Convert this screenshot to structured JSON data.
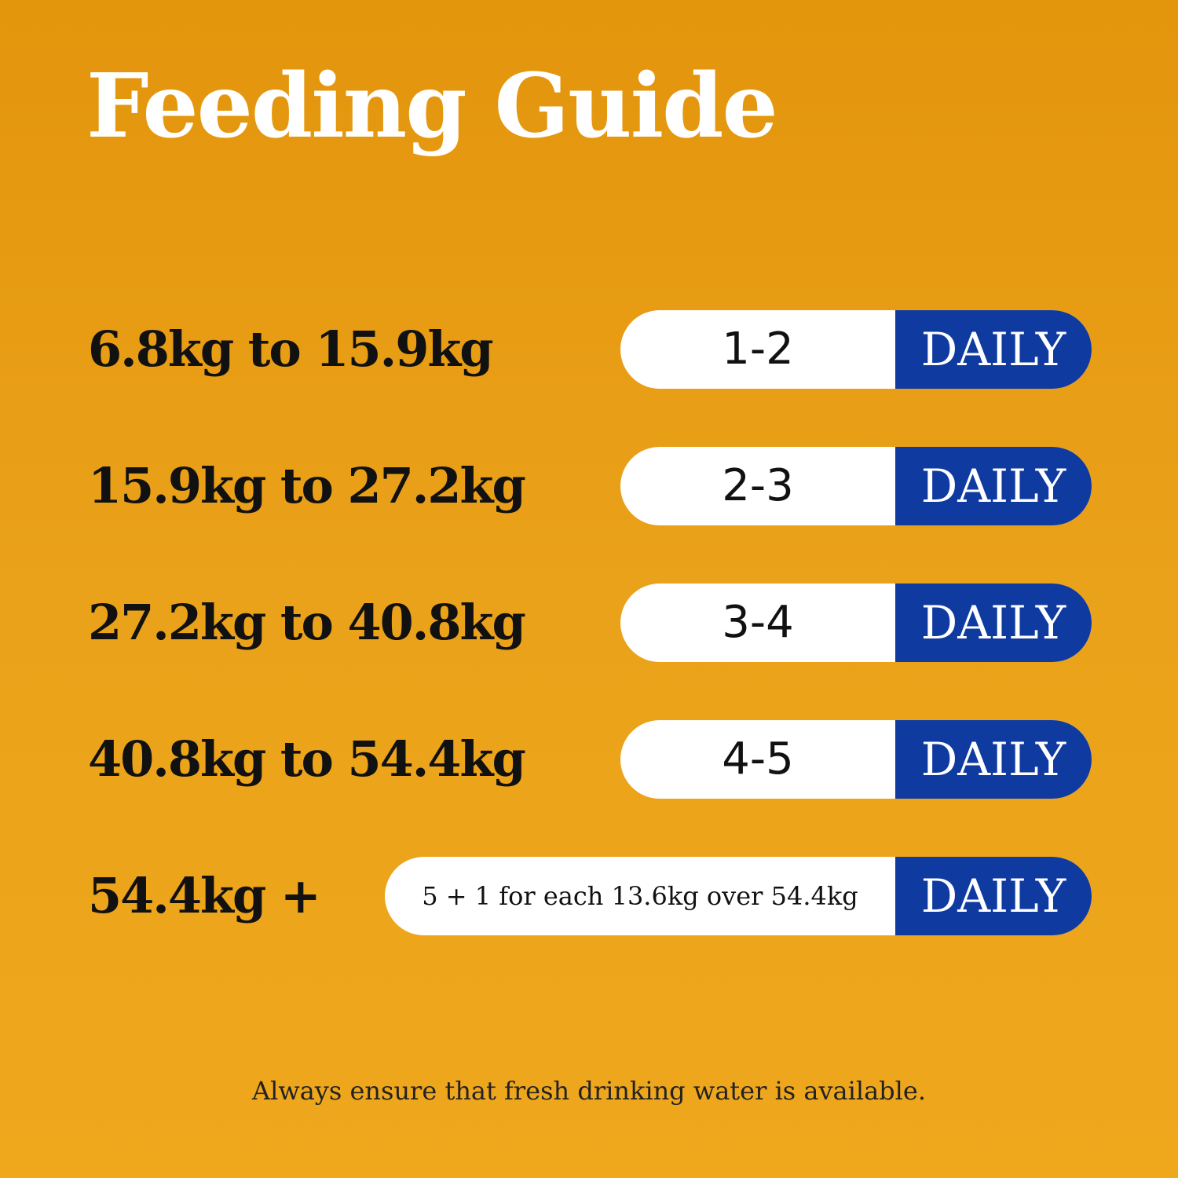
{
  "title": "Feeding Guide",
  "rows": [
    {
      "weight": "6.8kg to 15.9kg",
      "amount": "1-2",
      "unit": "DAILY"
    },
    {
      "weight": "15.9kg to 27.2kg",
      "amount": "2-3",
      "unit": "DAILY"
    },
    {
      "weight": "27.2kg to 40.8kg",
      "amount": "3-4",
      "unit": "DAILY"
    },
    {
      "weight": "40.8kg to 54.4kg",
      "amount": "4-5",
      "unit": "DAILY"
    },
    {
      "weight": "54.4kg +",
      "amount": "5 + 1 for each 13.6kg over 54.4kg",
      "unit": "DAILY"
    }
  ],
  "footnote": "Always ensure that fresh drinking water is available."
}
